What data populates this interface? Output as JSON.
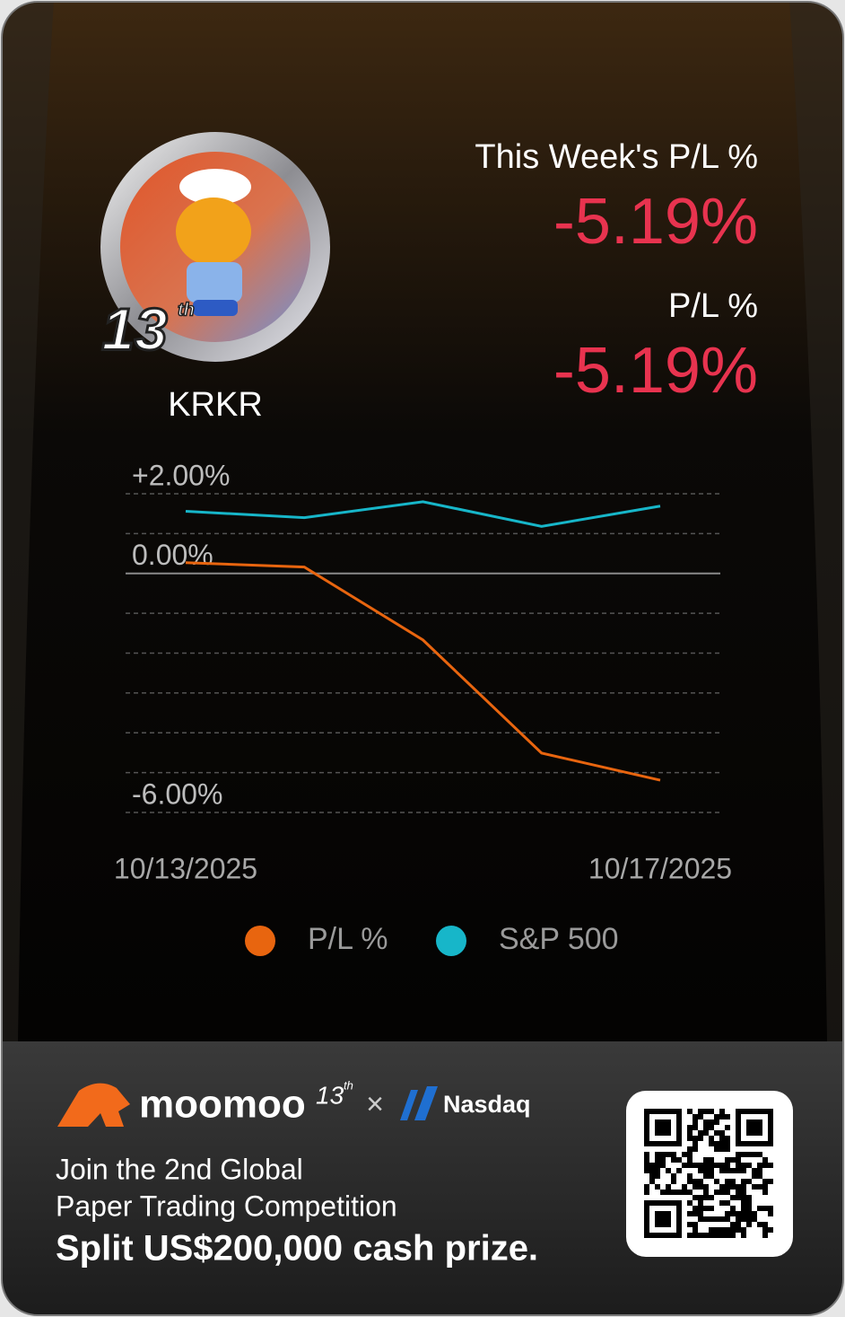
{
  "header": {
    "title": "This Week's P/L %",
    "week_value": "-5.19%",
    "total_label": "P/L %",
    "total_value": "-5.19%"
  },
  "avatar": {
    "badge": "13",
    "badge_suffix": "th",
    "name": "KRKR"
  },
  "chart_data": {
    "type": "line",
    "categories": [
      "10/13/2025",
      null,
      null,
      null,
      "10/17/2025"
    ],
    "series": [
      {
        "name": "P/L %",
        "color": "#e8650f",
        "values": [
          0.27,
          0.16,
          -1.67,
          -4.51,
          -5.19
        ]
      },
      {
        "name": "S&P 500",
        "color": "#17b6c9",
        "values": [
          1.56,
          1.4,
          1.8,
          1.18,
          1.69
        ]
      }
    ],
    "ylim": [
      -6,
      2
    ],
    "yticks": [
      {
        "value": 2,
        "label": "+2.00%"
      },
      {
        "value": 1,
        "label": null
      },
      {
        "value": 0,
        "label": "0.00%"
      },
      {
        "value": -1,
        "label": null
      },
      {
        "value": -2,
        "label": null
      },
      {
        "value": -3,
        "label": null
      },
      {
        "value": -4,
        "label": null
      },
      {
        "value": -5,
        "label": null
      },
      {
        "value": -6,
        "label": "-6.00%"
      }
    ],
    "grid": true,
    "legend": "bottom"
  },
  "footer": {
    "brand": "moomoo",
    "brand_badge": "13",
    "brand_badge_suffix": "th",
    "cross": "×",
    "partner": "Nasdaq",
    "lines": [
      "Join the 2nd Global",
      "Paper Trading Competition",
      "Split US$200,000 cash prize."
    ]
  }
}
